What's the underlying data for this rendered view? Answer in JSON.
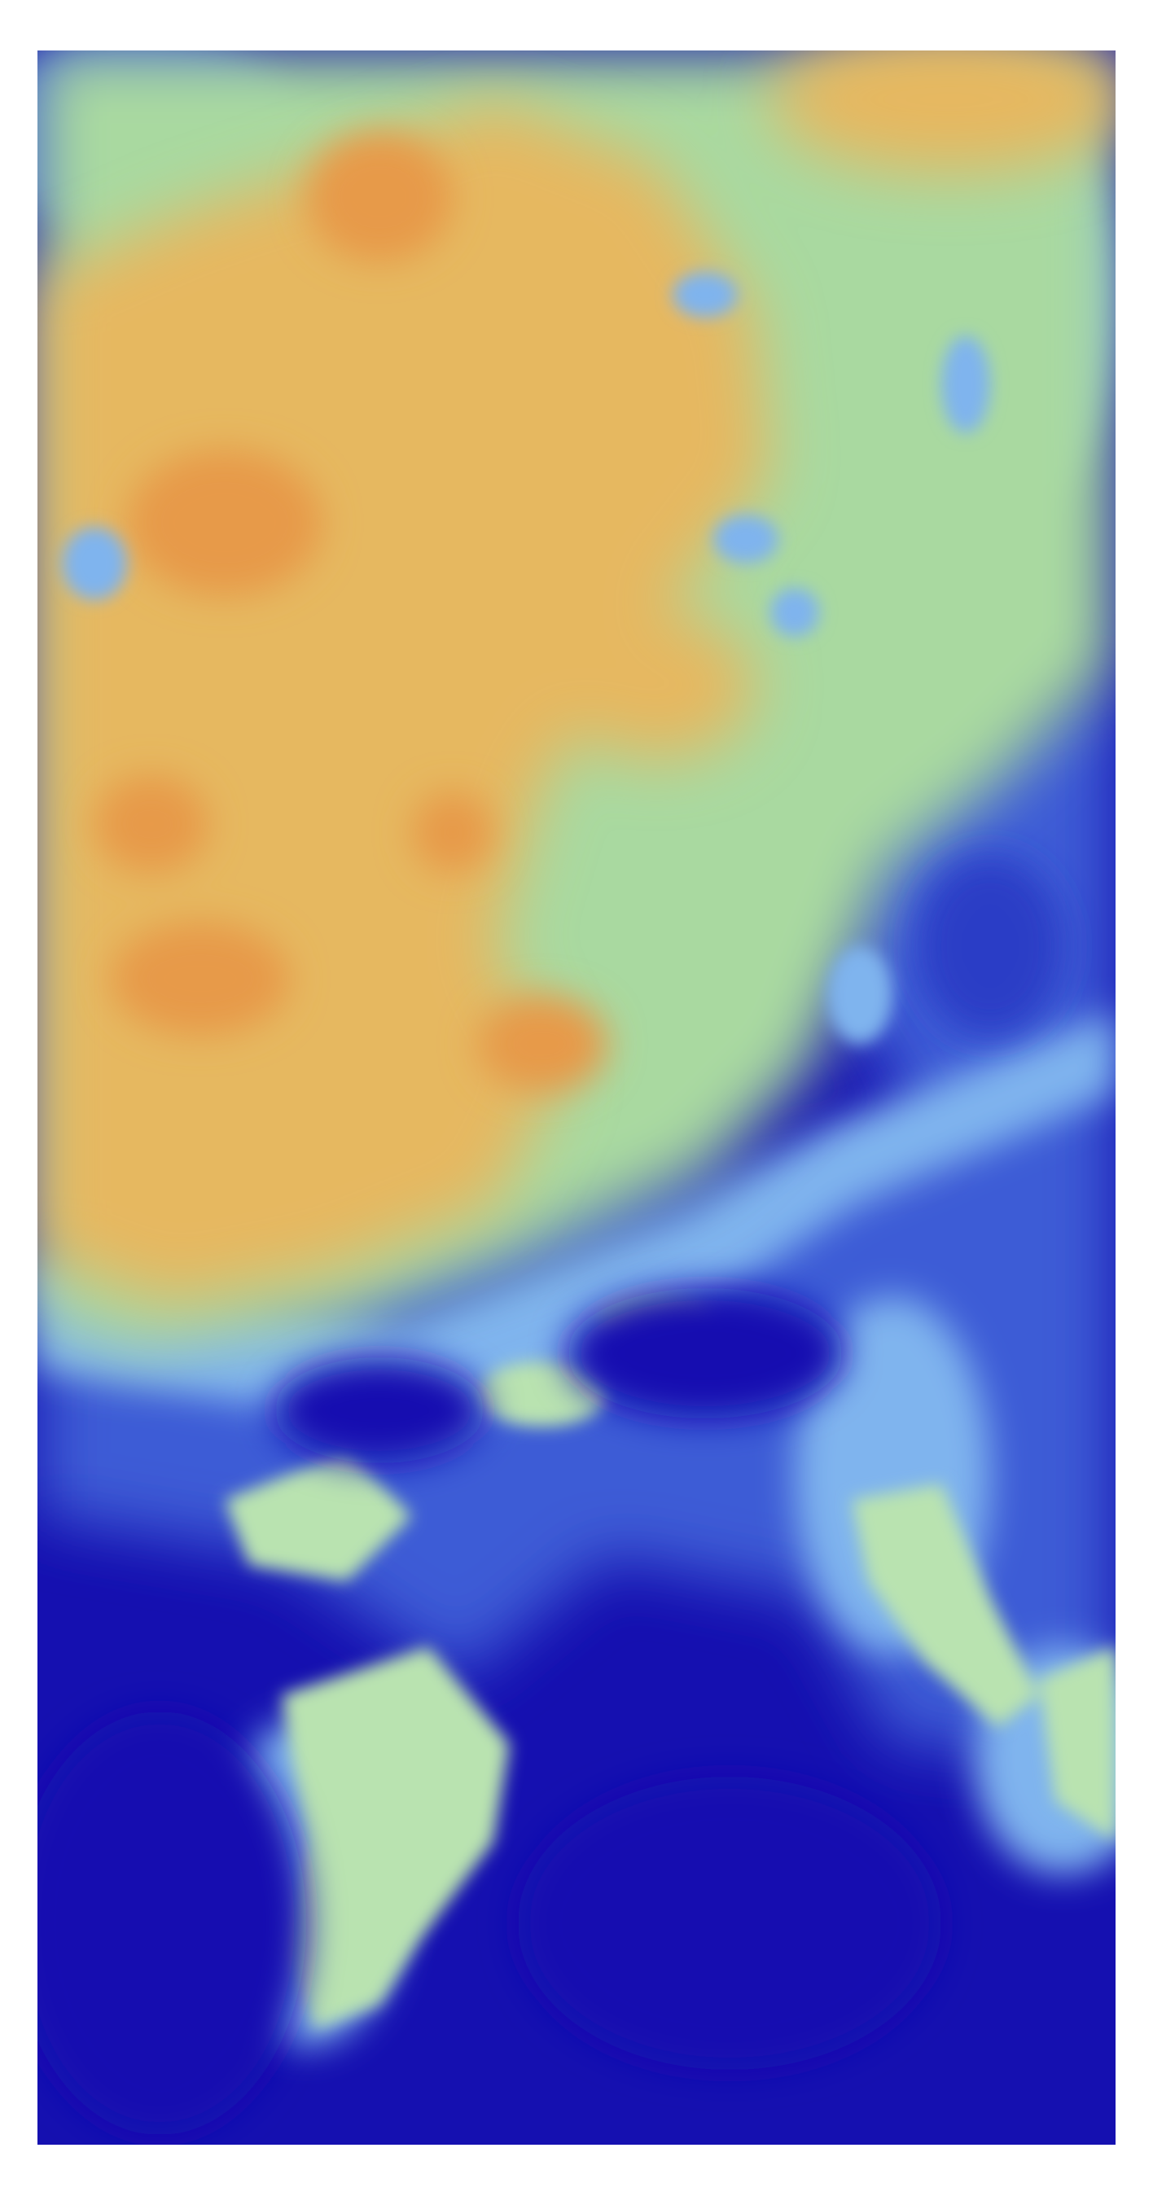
{
  "map": {
    "type": "heatmap",
    "colormap": [
      "#1510b0",
      "#3d5bd6",
      "#7fb4ee",
      "#b9e3b0",
      "#a9d9a0",
      "#e6b860",
      "#e79a48"
    ],
    "colors": {
      "deep_blue": "#1510b0",
      "mid_blue": "#3d5bd6",
      "light_blue": "#7fb4ee",
      "pale_green": "#b9e3b0",
      "green": "#a9d9a0",
      "orange": "#e6b860",
      "dark_orange": "#e79a48",
      "background": "#ffffff"
    },
    "legend": null,
    "labels": []
  }
}
